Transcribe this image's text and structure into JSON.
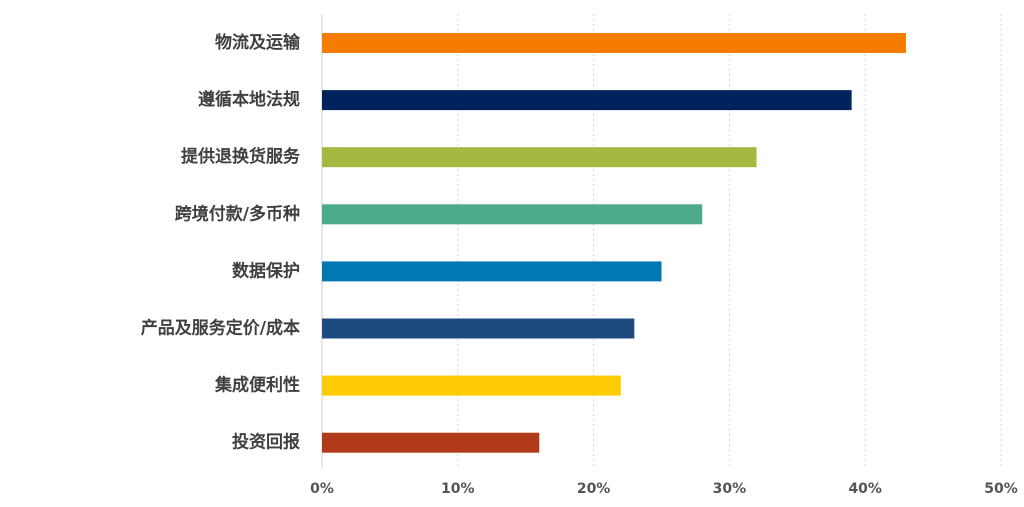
{
  "chart_data": {
    "type": "bar",
    "orientation": "horizontal",
    "title": "",
    "xlabel": "",
    "ylabel": "",
    "xlim": [
      0,
      50
    ],
    "x_ticks": [
      0,
      10,
      20,
      30,
      40,
      50
    ],
    "x_tick_labels": [
      "0%",
      "10%",
      "20%",
      "30%",
      "40%",
      "50%"
    ],
    "value_unit": "%",
    "grid": "vertical dotted",
    "legend": "none",
    "categories": [
      "物流及运输",
      "遵循本地法规",
      "提供退换货服务",
      "跨境付款/多币种",
      "数据保护",
      "产品及服务定价/成本",
      "集成便利性",
      "投资回报"
    ],
    "values": [
      43,
      39,
      32,
      28,
      25,
      23,
      22,
      16
    ],
    "colors": [
      "#F57C00",
      "#00235E",
      "#A3B940",
      "#4DAA8A",
      "#0079B3",
      "#1E4B7F",
      "#FFCB05",
      "#B13A1A"
    ]
  }
}
